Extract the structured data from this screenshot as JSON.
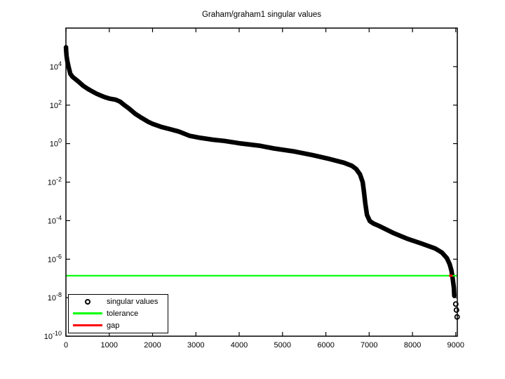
{
  "window": {
    "background": "#ffffff"
  },
  "chart_data": {
    "type": "line",
    "title": "Graham/graham1 singular values",
    "x_axis": {
      "lim": [
        0,
        9035
      ],
      "ticks": [
        0,
        1000,
        2000,
        3000,
        4000,
        5000,
        6000,
        7000,
        8000,
        9000
      ]
    },
    "y_axis": {
      "scale": "log10",
      "lim_log10": [
        -10,
        6
      ],
      "tick_base": "10",
      "tick_exponents": [
        4,
        2,
        0,
        -2,
        -4,
        -6,
        -8,
        -10
      ]
    },
    "grid": false,
    "legend": {
      "position": "south-west",
      "border_color": "#000000",
      "background": "#ffffff"
    },
    "series": [
      {
        "name": "singular values",
        "type": "scatter-line",
        "color": "#000000",
        "marker": "open-circle",
        "points_log10": [
          [
            1,
            5.0
          ],
          [
            5,
            4.82
          ],
          [
            15,
            4.55
          ],
          [
            30,
            4.3
          ],
          [
            60,
            4.0
          ],
          [
            100,
            3.63
          ],
          [
            150,
            3.47
          ],
          [
            200,
            3.38
          ],
          [
            300,
            3.2
          ],
          [
            400,
            3.0
          ],
          [
            500,
            2.85
          ],
          [
            600,
            2.72
          ],
          [
            700,
            2.6
          ],
          [
            800,
            2.5
          ],
          [
            900,
            2.41
          ],
          [
            1000,
            2.34
          ],
          [
            1150,
            2.28
          ],
          [
            1250,
            2.18
          ],
          [
            1350,
            2.0
          ],
          [
            1450,
            1.83
          ],
          [
            1600,
            1.55
          ],
          [
            1750,
            1.33
          ],
          [
            1900,
            1.13
          ],
          [
            2000,
            1.03
          ],
          [
            2200,
            0.87
          ],
          [
            2400,
            0.75
          ],
          [
            2600,
            0.63
          ],
          [
            2850,
            0.41
          ],
          [
            3100,
            0.3
          ],
          [
            3400,
            0.2
          ],
          [
            3660,
            0.14
          ],
          [
            4000,
            0.02
          ],
          [
            4470,
            -0.11
          ],
          [
            4800,
            -0.25
          ],
          [
            5280,
            -0.41
          ],
          [
            5700,
            -0.6
          ],
          [
            6090,
            -0.8
          ],
          [
            6415,
            -0.99
          ],
          [
            6600,
            -1.15
          ],
          [
            6700,
            -1.32
          ],
          [
            6790,
            -1.6
          ],
          [
            6850,
            -2.0
          ],
          [
            6880,
            -2.5
          ],
          [
            6910,
            -3.1
          ],
          [
            6950,
            -3.7
          ],
          [
            7015,
            -4.02
          ],
          [
            7100,
            -4.15
          ],
          [
            7225,
            -4.27
          ],
          [
            7550,
            -4.63
          ],
          [
            7870,
            -4.93
          ],
          [
            8200,
            -5.18
          ],
          [
            8520,
            -5.44
          ],
          [
            8680,
            -5.66
          ],
          [
            8795,
            -5.95
          ],
          [
            8860,
            -6.27
          ],
          [
            8900,
            -6.6
          ],
          [
            8925,
            -6.95
          ],
          [
            8940,
            -7.2
          ],
          [
            8955,
            -7.48
          ],
          [
            8965,
            -7.9
          ]
        ],
        "tail_points_log10": [
          [
            9000,
            -8.33
          ],
          [
            9015,
            -8.64
          ],
          [
            9030,
            -9.0
          ]
        ]
      },
      {
        "name": "tolerance",
        "type": "hline",
        "color": "#00ff00",
        "log10": -6.86,
        "value_approx": 1.4e-07
      },
      {
        "name": "gap",
        "type": "segment",
        "color": "#ff0000",
        "log10": -6.86,
        "x_range": [
          8846,
          8927
        ]
      }
    ]
  }
}
